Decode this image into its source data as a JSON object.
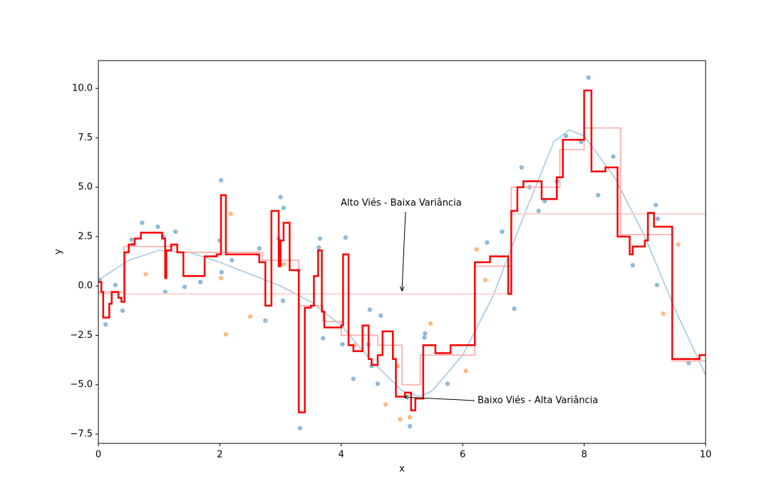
{
  "chart_data": {
    "type": "mixed",
    "xlabel": "x",
    "ylabel": "y",
    "xlim": [
      0,
      10
    ],
    "ylim": [
      -7.97,
      11.41
    ],
    "xticks": [
      0,
      2,
      4,
      6,
      8,
      10
    ],
    "yticks": [
      {
        "value": -7.5,
        "label": "−7.5"
      },
      {
        "value": -5,
        "label": "−5.0"
      },
      {
        "value": -2.5,
        "label": "−2.5"
      },
      {
        "value": 0,
        "label": "0.0"
      },
      {
        "value": 2.5,
        "label": "2.5"
      },
      {
        "value": 5,
        "label": "5.0"
      },
      {
        "value": 7.5,
        "label": "7.5"
      },
      {
        "value": 10,
        "label": "10.0"
      }
    ],
    "annotations": [
      "Alto Viés - Baixa Variância",
      "Baixo Viés - Alta Variância"
    ],
    "series": [
      {
        "kind": "line",
        "color": "#a6c8e2",
        "x": [
          0,
          0.5,
          1,
          1.5,
          2,
          2.5,
          3,
          3.5,
          4,
          4.5,
          5,
          5.3,
          5.5,
          6,
          6.5,
          7,
          7.5,
          7.75,
          8,
          8.5,
          9,
          9.5,
          10
        ],
        "values": [
          0.3,
          1.3,
          1.8,
          1.7,
          1.2,
          0.6,
          0.0,
          -0.8,
          -2.0,
          -3.8,
          -5.3,
          -5.6,
          -5.3,
          -3.5,
          -0.5,
          3.5,
          7.3,
          7.9,
          7.6,
          5.5,
          2.5,
          -1.2,
          -4.5
        ]
      },
      {
        "kind": "scatter",
        "color": "#8fbbd9",
        "x": [
          0.02,
          0.12,
          0.28,
          0.4,
          0.55,
          0.57,
          0.72,
          0.98,
          1.07,
          1.1,
          1.27,
          1.42,
          1.68,
          2.0,
          2.02,
          2.03,
          2.2,
          2.65,
          2.75,
          2.97,
          3.0,
          3.04,
          3.05,
          3.3,
          3.32,
          3.63,
          3.65,
          3.7,
          4.02,
          4.07,
          4.2,
          4.45,
          4.47,
          4.5,
          4.6,
          4.65,
          5.13,
          5.37,
          5.38,
          5.75,
          6.4,
          6.65,
          6.85,
          6.97,
          7.1,
          7.25,
          7.35,
          7.55,
          7.7,
          7.95,
          8.07,
          8.23,
          8.48,
          8.8,
          9.18,
          9.2,
          9.21,
          9.72
        ],
        "values": [
          0.3,
          -1.95,
          0.05,
          -1.25,
          2.35,
          2.1,
          3.2,
          3.0,
          2.5,
          -0.3,
          2.75,
          -0.05,
          0.2,
          2.3,
          5.35,
          0.7,
          1.3,
          1.9,
          -1.75,
          2.4,
          4.5,
          -0.75,
          3.95,
          0.8,
          -7.2,
          1.95,
          2.4,
          -2.65,
          -2.95,
          2.45,
          -4.7,
          -2.95,
          -1.2,
          -4.05,
          -4.95,
          -1.5,
          -7.1,
          -2.6,
          -2.4,
          -4.95,
          2.2,
          2.75,
          -1.15,
          6.0,
          5.0,
          3.8,
          4.3,
          5.3,
          7.6,
          7.3,
          10.55,
          4.6,
          6.55,
          1.05,
          4.1,
          0.05,
          3.4,
          -3.9
        ]
      },
      {
        "kind": "scatter",
        "color": "#ffbb80",
        "x": [
          0.78,
          2.02,
          2.1,
          2.18,
          2.5,
          3.05,
          4.22,
          4.93,
          4.73,
          4.97,
          5.13,
          5.47,
          6.05,
          6.23,
          6.37,
          9.3,
          9.55
        ],
        "values": [
          0.6,
          0.4,
          -2.45,
          3.65,
          -1.55,
          1.1,
          -3.0,
          -4.05,
          -6.0,
          -6.75,
          -6.65,
          -1.9,
          -4.3,
          1.85,
          0.3,
          -1.4,
          2.1
        ]
      },
      {
        "kind": "step",
        "color": "#ffcccc",
        "x": [
          0,
          6.8
        ],
        "values": [
          -0.4,
          3.65
        ]
      },
      {
        "kind": "step",
        "color": "#ffb0b0",
        "x": [
          0,
          0.42,
          1.3,
          2.7,
          3.3,
          3.7,
          4.0,
          4.6,
          5.0,
          5.3,
          6.2,
          6.8,
          7.6,
          8.0,
          8.6,
          9.45
        ],
        "values": [
          -0.3,
          2.0,
          1.7,
          1.3,
          -1.0,
          -1.8,
          -2.5,
          -3.0,
          -5.0,
          -3.5,
          1.0,
          5.0,
          6.9,
          8.0,
          2.6,
          -3.8
        ]
      },
      {
        "kind": "step",
        "color": "#ff0000",
        "x": [
          0,
          0.05,
          0.08,
          0.18,
          0.22,
          0.33,
          0.38,
          0.43,
          0.5,
          0.6,
          0.7,
          1.05,
          1.1,
          1.12,
          1.2,
          1.3,
          1.4,
          1.75,
          1.95,
          2.02,
          2.1,
          2.65,
          2.75,
          2.85,
          2.97,
          3.0,
          3.05,
          3.15,
          3.3,
          3.4,
          3.5,
          3.55,
          3.62,
          3.68,
          3.72,
          4.0,
          4.03,
          4.12,
          4.2,
          4.35,
          4.45,
          4.5,
          4.6,
          4.68,
          4.85,
          4.9,
          5.05,
          5.15,
          5.22,
          5.35,
          5.55,
          5.8,
          6.2,
          6.45,
          6.75,
          6.8,
          6.9,
          7.0,
          7.3,
          7.55,
          7.65,
          8.0,
          8.12,
          8.35,
          8.55,
          8.75,
          8.8,
          9.0,
          9.05,
          9.15,
          9.45,
          9.9
        ],
        "values": [
          0.2,
          -0.3,
          -1.6,
          -0.9,
          -0.3,
          -0.6,
          -0.8,
          1.7,
          2.1,
          2.4,
          2.7,
          2.4,
          0.4,
          1.8,
          2.1,
          1.7,
          0.5,
          1.5,
          1.6,
          4.6,
          1.6,
          1.2,
          -1.0,
          3.8,
          1.0,
          2.3,
          3.2,
          0.8,
          -6.4,
          -1.1,
          -1.0,
          0.5,
          1.8,
          -1.3,
          -2.1,
          -2.0,
          1.6,
          -3.0,
          -3.3,
          -2.0,
          -3.7,
          -4.0,
          -3.5,
          -2.3,
          -3.7,
          -5.6,
          -5.4,
          -6.3,
          -5.7,
          -3.0,
          -3.4,
          -3.0,
          1.2,
          1.5,
          -0.4,
          3.8,
          5.0,
          5.3,
          4.4,
          5.5,
          7.4,
          9.9,
          5.8,
          6.0,
          2.5,
          1.6,
          2.0,
          2.3,
          3.7,
          3.0,
          -3.7,
          -3.5
        ]
      }
    ]
  }
}
